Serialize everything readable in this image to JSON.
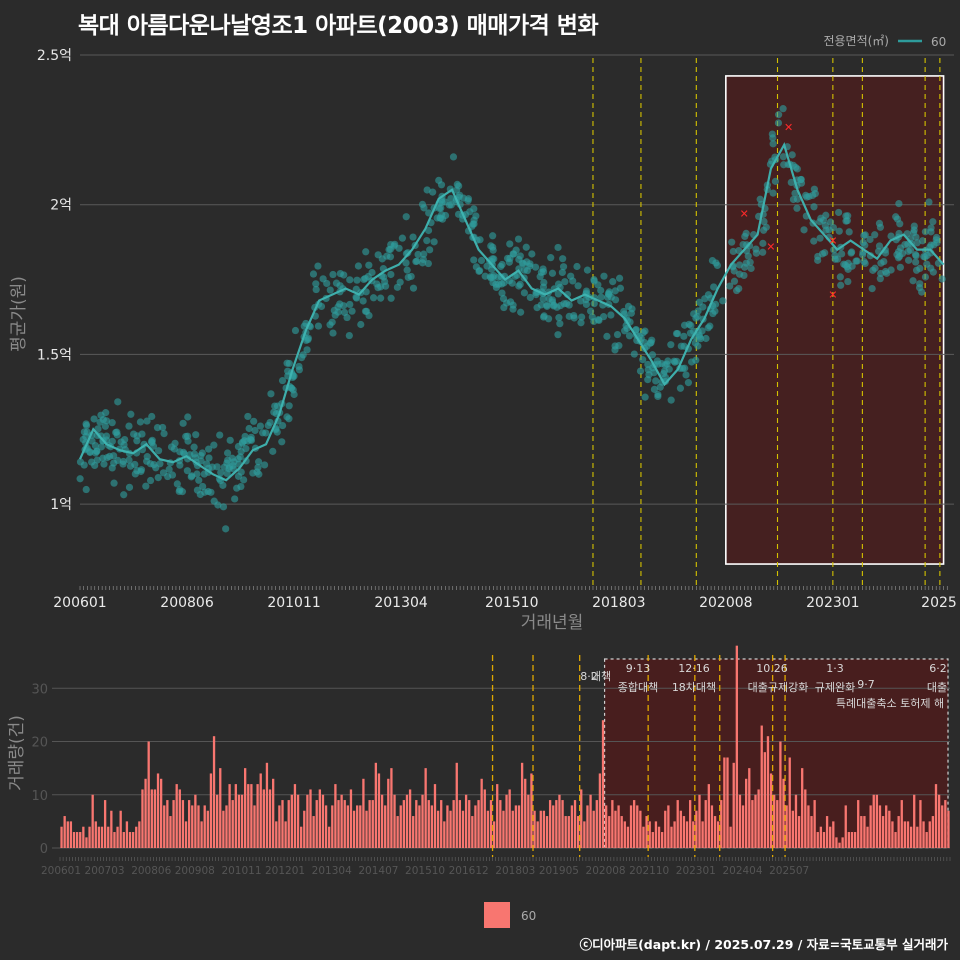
{
  "title": "복대 아름다운나날영조1 아파트(2003) 매매가격 변화",
  "footer": "ⓒ디아파트(dapt.kr) / 2025.07.29 / 자료=국토교통부 실거래가",
  "colors": {
    "background": "#2b2b2b",
    "price": "#2e9c9c",
    "volume": "#f87670",
    "event_line": "#d4c200",
    "highlight": "#4a1e1e",
    "red_mark": "#ff2a2a"
  },
  "chart_data": [
    {
      "type": "line",
      "title": "복대 아름다운나날영조1 아파트(2003) 매매가격 변화",
      "xlabel": "거래년월",
      "ylabel": "평균가(원)",
      "x_tick_labels": [
        "200601",
        "200806",
        "201011",
        "201304",
        "201510",
        "201803",
        "202008",
        "202301",
        "2025"
      ],
      "y_tick_labels": [
        "1억",
        "1.5억",
        "2억",
        "2.5억"
      ],
      "y_ticks": [
        1.0,
        1.5,
        2.0,
        2.5
      ],
      "ylim": [
        0.72,
        2.55
      ],
      "xlim": [
        2006.0,
        2025.6
      ],
      "legend": {
        "title": "전용면적(㎡)",
        "entries": [
          "60"
        ],
        "position": "top-right"
      },
      "series": [
        {
          "name": "60",
          "x": [
            2006.0,
            2006.3,
            2006.6,
            2006.9,
            2007.2,
            2007.5,
            2007.8,
            2008.1,
            2008.4,
            2008.7,
            2009.0,
            2009.3,
            2009.6,
            2009.9,
            2010.2,
            2010.5,
            2010.8,
            2011.1,
            2011.4,
            2011.7,
            2012.0,
            2012.3,
            2012.6,
            2012.9,
            2013.2,
            2013.5,
            2013.8,
            2014.1,
            2014.4,
            2014.7,
            2015.0,
            2015.3,
            2015.6,
            2015.9,
            2016.2,
            2016.5,
            2016.8,
            2017.1,
            2017.4,
            2017.7,
            2018.0,
            2018.3,
            2018.6,
            2018.9,
            2019.2,
            2019.5,
            2019.8,
            2020.1,
            2020.4,
            2020.7,
            2021.0,
            2021.3,
            2021.6,
            2021.9,
            2022.2,
            2022.5,
            2022.8,
            2023.1,
            2023.4,
            2023.7,
            2024.0,
            2024.3,
            2024.6,
            2024.9,
            2025.2,
            2025.5
          ],
          "y": [
            1.15,
            1.25,
            1.2,
            1.18,
            1.17,
            1.2,
            1.15,
            1.14,
            1.16,
            1.13,
            1.1,
            1.08,
            1.12,
            1.18,
            1.2,
            1.3,
            1.45,
            1.58,
            1.68,
            1.7,
            1.72,
            1.7,
            1.75,
            1.78,
            1.8,
            1.85,
            1.92,
            2.02,
            2.05,
            1.95,
            1.85,
            1.8,
            1.75,
            1.78,
            1.72,
            1.7,
            1.72,
            1.68,
            1.7,
            1.68,
            1.66,
            1.62,
            1.55,
            1.48,
            1.4,
            1.45,
            1.55,
            1.62,
            1.72,
            1.8,
            1.85,
            1.9,
            2.12,
            2.2,
            2.05,
            1.95,
            1.9,
            1.85,
            1.88,
            1.85,
            1.82,
            1.88,
            1.9,
            1.85,
            1.85,
            1.8
          ]
        }
      ],
      "event_lines": [
        "2017-08",
        "2018-09",
        "2019-12",
        "2021-10",
        "2023-01",
        "2023-09",
        "2025-02",
        "2025-06"
      ],
      "highlight_range": [
        "2020-08",
        "2025-07"
      ]
    },
    {
      "type": "bar",
      "ylabel": "거래량(건)",
      "x_tick_labels": [
        "200601",
        "200703",
        "200806",
        "200908",
        "201011",
        "201201",
        "201304",
        "201407",
        "201510",
        "201612",
        "201803",
        "201905",
        "202008",
        "202110",
        "202301",
        "202404",
        "202507"
      ],
      "y_tick_labels": [
        "0",
        "10",
        "20",
        "30"
      ],
      "ylim": [
        0,
        37
      ],
      "legend": {
        "entries": [
          "60"
        ],
        "position": "bottom"
      },
      "series": [
        {
          "name": "60",
          "x_start": 2006.0,
          "step_months": 1,
          "values": [
            4,
            6,
            5,
            5,
            3,
            3,
            3,
            4,
            2,
            4,
            10,
            5,
            4,
            4,
            9,
            4,
            7,
            3,
            4,
            7,
            3,
            5,
            3,
            3,
            4,
            5,
            11,
            13,
            20,
            11,
            11,
            14,
            13,
            8,
            9,
            6,
            9,
            12,
            11,
            9,
            5,
            9,
            8,
            10,
            8,
            5,
            8,
            7,
            14,
            21,
            10,
            15,
            7,
            8,
            12,
            9,
            12,
            10,
            10,
            15,
            12,
            12,
            8,
            12,
            14,
            11,
            16,
            11,
            13,
            5,
            8,
            9,
            5,
            9,
            10,
            12,
            10,
            4,
            7,
            10,
            11,
            6,
            9,
            11,
            10,
            8,
            4,
            8,
            12,
            9,
            10,
            9,
            8,
            11,
            7,
            8,
            8,
            13,
            7,
            9,
            9,
            16,
            14,
            10,
            8,
            13,
            15,
            10,
            6,
            8,
            9,
            10,
            11,
            6,
            9,
            8,
            10,
            15,
            9,
            8,
            12,
            7,
            9,
            5,
            8,
            7,
            9,
            16,
            9,
            7,
            10,
            9,
            6,
            8,
            9,
            13,
            11,
            7,
            9,
            5,
            12,
            9,
            7,
            10,
            11,
            7,
            8,
            8,
            16,
            13,
            10,
            14,
            7,
            5,
            7,
            7,
            6,
            9,
            8,
            9,
            10,
            9,
            6,
            6,
            8,
            9,
            6,
            11,
            5,
            8,
            10,
            7,
            9,
            14,
            24,
            8,
            6,
            9,
            7,
            8,
            6,
            5,
            4,
            8,
            9,
            8,
            7,
            4,
            6,
            5,
            3,
            5,
            4,
            3,
            7,
            8,
            4,
            5,
            9,
            7,
            6,
            5,
            9,
            5,
            7,
            10,
            5,
            9,
            12,
            8,
            6,
            5,
            9,
            17,
            17,
            4,
            16,
            38,
            10,
            8,
            13,
            15,
            9,
            10,
            11,
            23,
            18,
            21,
            14,
            10,
            9,
            20,
            13,
            8,
            17,
            7,
            10,
            6,
            15,
            11,
            8,
            6,
            9,
            3,
            4,
            3,
            6,
            4,
            5,
            2,
            1,
            2,
            8,
            3,
            3,
            3,
            9,
            6,
            6,
            4,
            8,
            10,
            10,
            8,
            6,
            8,
            7,
            5,
            3,
            6,
            9,
            5,
            5,
            4,
            10,
            4,
            9,
            5,
            3,
            5,
            6,
            12,
            10,
            8,
            9,
            7
          ]
        }
      ],
      "annotations": [
        {
          "date": "8·2",
          "label": "대책"
        },
        {
          "date": "9·13",
          "label": "종합대책"
        },
        {
          "date": "12·16",
          "label": "18차대책"
        },
        {
          "date": "10.26",
          "label": "대출규제강화"
        },
        {
          "date": "1·3",
          "label": "규제완화"
        },
        {
          "date": "9·7",
          "label": "특례대출축소 토허제 해"
        },
        {
          "date": "6·2",
          "label": "대출"
        }
      ]
    }
  ]
}
